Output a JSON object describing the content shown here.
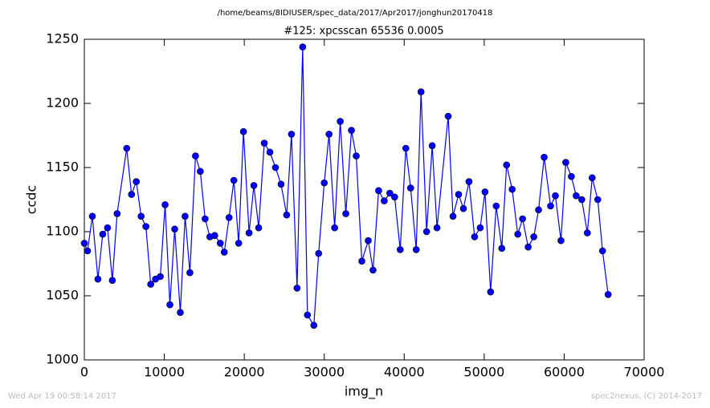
{
  "chart_data": {
    "type": "line",
    "suptitle": "/home/beams/8IDIUSER/spec_data/2017/Apr2017/jonghun20170418",
    "title": "#125: xpcsscan 65536 0.0005",
    "xlabel": "img_n",
    "ylabel": "ccdc",
    "footer_left": "Wed Apr 19 00:58:14 2017",
    "footer_right": "spec2nexus, (C) 2014-2017",
    "x": [
      0,
      400,
      1000,
      1700,
      2300,
      2900,
      3500,
      4100,
      5300,
      5900,
      6500,
      7100,
      7700,
      8300,
      8900,
      9500,
      10100,
      10700,
      11300,
      12000,
      12600,
      13200,
      13900,
      14500,
      15100,
      15700,
      16300,
      17000,
      17500,
      18100,
      18700,
      19300,
      19900,
      20600,
      21200,
      21800,
      22500,
      23200,
      23900,
      24600,
      25300,
      25900,
      26600,
      27300,
      27900,
      28700,
      29300,
      30000,
      30600,
      31300,
      32000,
      32700,
      33400,
      34000,
      34700,
      35500,
      36100,
      36800,
      37500,
      38200,
      38800,
      39500,
      40200,
      40800,
      41500,
      42100,
      42800,
      43500,
      44100,
      45500,
      46100,
      46800,
      47400,
      48100,
      48800,
      49500,
      50100,
      50800,
      51500,
      52200,
      52800,
      53500,
      54200,
      54800,
      55500,
      56200,
      56800,
      57500,
      58300,
      58900,
      59600,
      60200,
      60900,
      61500,
      62200,
      62900,
      63500,
      64200,
      64800,
      65500
    ],
    "series": [
      {
        "name": "ccdc",
        "color": "#0000ff",
        "values": [
          1091,
          1085,
          1112,
          1063,
          1098,
          1103,
          1062,
          1114,
          1165,
          1129,
          1139,
          1112,
          1104,
          1059,
          1063,
          1065,
          1121,
          1043,
          1102,
          1037,
          1112,
          1068,
          1159,
          1147,
          1110,
          1096,
          1097,
          1091,
          1084,
          1111,
          1140,
          1091,
          1178,
          1099,
          1136,
          1103,
          1169,
          1162,
          1150,
          1137,
          1113,
          1176,
          1056,
          1244,
          1035,
          1027,
          1083,
          1138,
          1176,
          1103,
          1186,
          1114,
          1179,
          1159,
          1077,
          1093,
          1070,
          1132,
          1124,
          1130,
          1127,
          1086,
          1165,
          1134,
          1086,
          1209,
          1100,
          1167,
          1103,
          1190,
          1112,
          1129,
          1118,
          1139,
          1096,
          1103,
          1131,
          1053,
          1120,
          1087,
          1152,
          1133,
          1098,
          1110,
          1088,
          1096,
          1117,
          1158,
          1120,
          1128,
          1093,
          1154,
          1143,
          1128,
          1125,
          1099,
          1142,
          1125,
          1085,
          1051
        ]
      }
    ],
    "xlim": [
      0,
      70000
    ],
    "ylim": [
      1000,
      1250
    ],
    "xticks": [
      0,
      10000,
      20000,
      30000,
      40000,
      50000,
      60000,
      70000
    ],
    "yticks": [
      1000,
      1050,
      1100,
      1150,
      1200,
      1250
    ]
  }
}
